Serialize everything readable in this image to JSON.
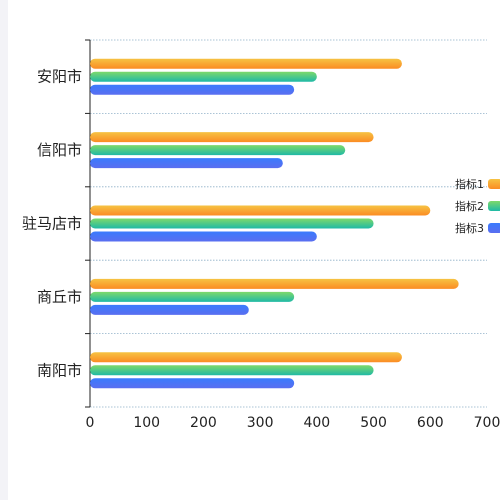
{
  "chart_data": {
    "type": "bar",
    "orientation": "horizontal",
    "categories": [
      "安阳市",
      "信阳市",
      "驻马店市",
      "商丘市",
      "南阳市"
    ],
    "series": [
      {
        "name": "指标1",
        "values": [
          550,
          500,
          600,
          650,
          550
        ],
        "color_start": "#f6c343",
        "color_end": "#fb8c23"
      },
      {
        "name": "指标2",
        "values": [
          400,
          450,
          500,
          360,
          500
        ],
        "color_start": "#7ed96a",
        "color_end": "#1fb9a6"
      },
      {
        "name": "指标3",
        "values": [
          360,
          340,
          400,
          280,
          360
        ],
        "color_start": "#3a7bfd",
        "color_end": "#5a6ef0"
      }
    ],
    "xlim": [
      0,
      700
    ],
    "x_ticks": [
      0,
      100,
      200,
      300,
      400,
      500,
      600,
      700
    ],
    "grid": true,
    "legend_position": "right",
    "title": "",
    "xlabel": "",
    "ylabel": ""
  }
}
